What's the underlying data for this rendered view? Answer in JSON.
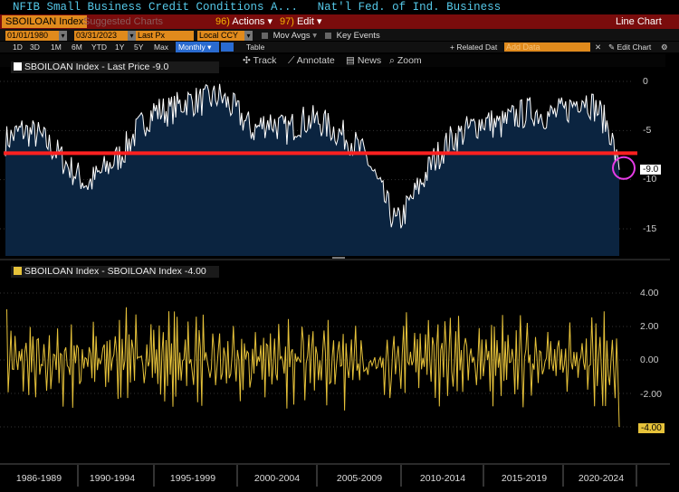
{
  "header": {
    "title_left": "NFIB Small Business Credit Conditions A...",
    "title_right": "Nat'l Fed. of Ind. Business",
    "ticker": "SBOILOAN Index",
    "suggested_label": "Suggested Charts",
    "suggested_num": "96",
    "actions_num": "96)",
    "actions_label": "Actions",
    "edit_num": "97)",
    "edit_label": "Edit",
    "chart_type": "Line Chart"
  },
  "controls": {
    "start_date": "01/01/1980",
    "end_date": "03/31/2023",
    "field": "Last Px",
    "currency": "Local CCY",
    "mov_avgs": "Mov Avgs",
    "key_events": "Key Events",
    "related_data": "+ Related Dat",
    "add_data_placeholder": "Add Data",
    "edit_chart": "Edit Chart",
    "ranges": [
      "1D",
      "3D",
      "1M",
      "6M",
      "YTD",
      "1Y",
      "5Y",
      "Max"
    ],
    "frequency": "Monthly",
    "table_label": "Table"
  },
  "tools": {
    "track": "Track",
    "annotate": "Annotate",
    "news": "News",
    "zoom": "Zoom"
  },
  "panels": {
    "top_legend": "SBOILOAN Index - Last Price -9.0",
    "top_last_tag": "-9.0",
    "top_yticks": [
      "0",
      "-5",
      "-10",
      "-15"
    ],
    "bottom_legend": "SBOILOAN Index - SBOILOAN Index -4.00",
    "bottom_last_tag": "-4.00",
    "bottom_yticks": [
      "4.00",
      "2.00",
      "0.00",
      "-2.00",
      "-4.00"
    ],
    "x_labels": [
      "1986-1989",
      "1990-1994",
      "1995-1999",
      "2000-2004",
      "2005-2009",
      "2010-2014",
      "2015-2019",
      "2020-2024"
    ]
  },
  "colors": {
    "line_top": "#ffffff",
    "area_top": "#0b2440",
    "line_bottom": "#e6c23a",
    "ref_line": "#ff2020",
    "circle": "#e63ce6"
  },
  "chart_data": [
    {
      "type": "area",
      "series": [
        {
          "name": "SBOILOAN Index - Last Price",
          "last": -9.0
        }
      ],
      "x_range": [
        "1986",
        "2023-03"
      ],
      "ylim": [
        -18,
        2
      ],
      "y_ticks": [
        0,
        -5,
        -10,
        -15
      ],
      "reference_line": -7.3,
      "anchors": [
        [
          1986.0,
          -6
        ],
        [
          1987.0,
          -5
        ],
        [
          1988.0,
          -5.5
        ],
        [
          1989.0,
          -7
        ],
        [
          1989.5,
          -8
        ],
        [
          1990.0,
          -9
        ],
        [
          1991.0,
          -10.5
        ],
        [
          1992.0,
          -9
        ],
        [
          1993.0,
          -7.5
        ],
        [
          1994.0,
          -5
        ],
        [
          1995.0,
          -3
        ],
        [
          1996.0,
          -3
        ],
        [
          1997.0,
          -2
        ],
        [
          1998.0,
          -2
        ],
        [
          1999.0,
          -1.5
        ],
        [
          2000.0,
          -3
        ],
        [
          2001.0,
          -5
        ],
        [
          2002.0,
          -4
        ],
        [
          2003.0,
          -5
        ],
        [
          2004.0,
          -4
        ],
        [
          2005.0,
          -4
        ],
        [
          2006.0,
          -5
        ],
        [
          2007.0,
          -6
        ],
        [
          2008.0,
          -8
        ],
        [
          2009.0,
          -12
        ],
        [
          2009.7,
          -14.5
        ],
        [
          2010.0,
          -14
        ],
        [
          2011.0,
          -11
        ],
        [
          2012.0,
          -8
        ],
        [
          2013.0,
          -6
        ],
        [
          2014.0,
          -5
        ],
        [
          2015.0,
          -4
        ],
        [
          2016.0,
          -4.5
        ],
        [
          2017.0,
          -3.5
        ],
        [
          2018.0,
          -3
        ],
        [
          2019.0,
          -3.5
        ],
        [
          2020.0,
          -3
        ],
        [
          2021.0,
          -1.5
        ],
        [
          2022.0,
          -3
        ],
        [
          2022.7,
          -5
        ],
        [
          2023.2,
          -9
        ]
      ]
    },
    {
      "type": "line",
      "series": [
        {
          "name": "SBOILOAN Index - SBOILOAN Index",
          "last": -4.0
        }
      ],
      "x_range": [
        "1986",
        "2023-03"
      ],
      "ylim": [
        -5,
        5
      ],
      "y_ticks": [
        4,
        2,
        0,
        -2,
        -4
      ]
    }
  ]
}
